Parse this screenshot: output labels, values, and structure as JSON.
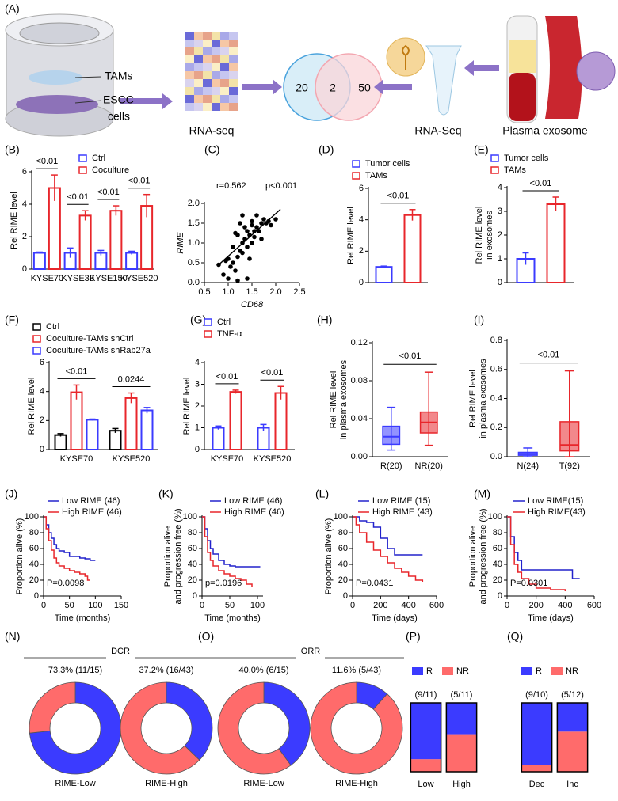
{
  "panel_a": {
    "label": "(A)",
    "tams": "TAMs",
    "escc": [
      "ESCC",
      "cells"
    ],
    "rna_seq_1": "RNA-seq",
    "venn": {
      "left": 20,
      "overlap": 2,
      "right": 50
    },
    "rna_seq_2": "RNA-Seq",
    "plasma": "Plasma exosome"
  },
  "chart_data": [
    {
      "panel": "(B)",
      "type": "bar",
      "ylabel": [
        "Rel RIME level"
      ],
      "categories": [
        "KYSE70",
        "KYSE30",
        "KYSE150",
        "KYSE520"
      ],
      "series": [
        {
          "name": "Ctrl",
          "color": "#3b3bff",
          "values": [
            1,
            1,
            1,
            1
          ],
          "errors": [
            0.05,
            0.3,
            0.15,
            0.1
          ]
        },
        {
          "name": "Coculture",
          "color": "#e8262b",
          "values": [
            5,
            3.3,
            3.6,
            3.9
          ],
          "errors": [
            0.8,
            0.3,
            0.3,
            0.7
          ]
        }
      ],
      "annotations": [
        "<0.01",
        "<0.01",
        "<0.01",
        "<0.01"
      ],
      "ylim": [
        0,
        6
      ],
      "yticks": [
        0,
        2,
        4,
        6
      ]
    },
    {
      "panel": "(C)",
      "type": "scatter",
      "stats": [
        "r=0.562",
        "p<0.001"
      ],
      "xlabel": "CD68",
      "ylabel": [
        "RIME"
      ],
      "x": [
        0.8,
        0.9,
        0.95,
        1.0,
        1.05,
        1.1,
        1.1,
        1.15,
        1.2,
        1.2,
        1.25,
        1.25,
        1.3,
        1.3,
        1.35,
        1.35,
        1.4,
        1.4,
        1.45,
        1.45,
        1.5,
        1.5,
        1.55,
        1.55,
        1.6,
        1.6,
        1.65,
        1.7,
        1.7,
        1.75,
        1.8,
        1.85,
        1.9,
        2.0,
        1.0,
        1.2,
        1.4,
        1.3,
        1.15,
        1.5
      ],
      "values": [
        0.45,
        0.2,
        0.55,
        0.6,
        0.4,
        0.5,
        0.9,
        0.3,
        0.65,
        1.2,
        0.8,
        1.5,
        1.0,
        0.75,
        1.1,
        1.4,
        0.9,
        1.3,
        1.2,
        0.6,
        1.0,
        1.55,
        1.3,
        1.15,
        1.4,
        1.7,
        1.3,
        1.5,
        1.1,
        1.6,
        1.5,
        1.55,
        1.45,
        1.6,
        0.1,
        0.05,
        0.1,
        1.7,
        1.25,
        1.45
      ],
      "trendline": {
        "x": [
          0.8,
          2.1
        ],
        "values": [
          0.45,
          1.85
        ]
      },
      "xlim": [
        0.5,
        2.5
      ],
      "xticks": [
        0.5,
        {
          "value": 1,
          "label": "1.0"
        },
        1.5,
        {
          "value": 2,
          "label": "2.0"
        },
        2.5
      ],
      "ylim": [
        0,
        2
      ],
      "yticks": [
        {
          "value": 0,
          "label": "0.0"
        },
        0.5,
        {
          "value": 1,
          "label": "1.0"
        },
        1.5,
        {
          "value": 2,
          "label": "2.0"
        }
      ]
    },
    {
      "panel": "(D)",
      "type": "bar",
      "ylabel": [
        "Rel RIME level"
      ],
      "categories": [
        null
      ],
      "series": [
        {
          "name": "Tumor cells",
          "color": "#3b3bff",
          "values": [
            1
          ],
          "errors": [
            0.05
          ]
        },
        {
          "name": "TAMs",
          "color": "#e8262b",
          "values": [
            4.3
          ],
          "errors": [
            0.35
          ]
        }
      ],
      "annotations": [
        "<0.01"
      ],
      "ylim": [
        0,
        6
      ],
      "yticks": [
        0,
        2,
        4,
        6
      ]
    },
    {
      "panel": "(E)",
      "type": "bar",
      "ylabel": [
        "Rel RIME level",
        "in exosomes"
      ],
      "categories": [
        null
      ],
      "series": [
        {
          "name": "Tumor cells",
          "color": "#3b3bff",
          "values": [
            1
          ],
          "errors": [
            0.25
          ]
        },
        {
          "name": "TAMs",
          "color": "#e8262b",
          "values": [
            3.3
          ],
          "errors": [
            0.3
          ]
        }
      ],
      "annotations": [
        "<0.01"
      ],
      "ylim": [
        0,
        4
      ],
      "yticks": [
        0,
        1,
        2,
        3,
        4
      ]
    },
    {
      "panel": "(F)",
      "type": "bar",
      "ylabel": [
        "Rel RIME level"
      ],
      "categories": [
        "KYSE70",
        "KYSE520"
      ],
      "series": [
        {
          "name": "Ctrl",
          "color": "#000000",
          "values": [
            1,
            1.3
          ],
          "errors": [
            0.1,
            0.15
          ]
        },
        {
          "name": "Coculture-TAMs shCtrl",
          "color": "#e8262b",
          "values": [
            3.95,
            3.55
          ],
          "errors": [
            0.5,
            0.35
          ]
        },
        {
          "name": "Coculture-TAMs shRab27a",
          "color": "#3b3bff",
          "values": [
            2.05,
            2.7
          ],
          "errors": [
            0.05,
            0.2
          ]
        }
      ],
      "annotations": [
        "<0.01",
        "0.0244"
      ],
      "ylim": [
        0,
        6
      ],
      "yticks": [
        0,
        2,
        4,
        6
      ]
    },
    {
      "panel": "(G)",
      "type": "bar",
      "ylabel": [
        "Rel RIME level"
      ],
      "categories": [
        "KYSE70",
        "KYSE520"
      ],
      "series": [
        {
          "name": "Ctrl",
          "color": "#3b3bff",
          "values": [
            1,
            1
          ],
          "errors": [
            0.08,
            0.15
          ]
        },
        {
          "name": "TNF-α",
          "color": "#e8262b",
          "values": [
            2.65,
            2.6
          ],
          "errors": [
            0.08,
            0.3
          ]
        }
      ],
      "annotations": [
        "<0.01",
        "<0.01"
      ],
      "ylim": [
        0,
        4
      ],
      "yticks": [
        0,
        1,
        2,
        3,
        4
      ]
    },
    {
      "panel": "(H)",
      "type": "box",
      "ylabel": [
        "Rel RIME level",
        "in plasma exosomes"
      ],
      "categories": [
        "R(20)",
        "NR(20)"
      ],
      "colors": [
        "#3b3bff",
        "#e8262b"
      ],
      "boxes": [
        {
          "min": 0.007,
          "q1": 0.013,
          "median": 0.021,
          "q3": 0.032,
          "max": 0.052
        },
        {
          "min": 0.012,
          "q1": 0.025,
          "median": 0.036,
          "q3": 0.047,
          "max": 0.089
        }
      ],
      "annotation": "<0.01",
      "ylim": [
        0,
        0.12
      ],
      "yticks": [
        {
          "value": 0,
          "label": "0.00"
        },
        {
          "value": 0.04,
          "label": "0.04"
        },
        {
          "value": 0.08,
          "label": "0.08"
        },
        {
          "value": 0.12,
          "label": "0.12"
        }
      ]
    },
    {
      "panel": "(I)",
      "type": "box",
      "ylabel": [
        "Rel RIME level",
        "in plasma exosomes"
      ],
      "categories": [
        "N(24)",
        "T(92)"
      ],
      "colors": [
        "#3b3bff",
        "#e8262b"
      ],
      "boxes": [
        {
          "min": 0.0,
          "q1": 0.01,
          "median": 0.02,
          "q3": 0.03,
          "max": 0.06
        },
        {
          "min": 0.0,
          "q1": 0.04,
          "median": 0.08,
          "q3": 0.24,
          "max": 0.59
        }
      ],
      "annotation": "<0.01",
      "ylim": [
        0,
        0.8
      ],
      "yticks": [
        {
          "value": 0,
          "label": "0.0"
        },
        0.2,
        0.4,
        0.6,
        0.8
      ]
    },
    {
      "panel": "(J)",
      "type": "km",
      "ylabel": [
        "Proportion alive (%)"
      ],
      "xlabel": "Time (months)",
      "pvalue": "P=0.0098",
      "series": [
        {
          "name": "Low RIME (46)",
          "color": "#2222cc",
          "x": [
            0,
            5,
            10,
            15,
            20,
            25,
            30,
            40,
            50,
            60,
            70,
            80,
            90,
            100
          ],
          "values": [
            100,
            90,
            80,
            73,
            65,
            60,
            57,
            55,
            50,
            50,
            48,
            47,
            45,
            45
          ]
        },
        {
          "name": "High RIME (46)",
          "color": "#e8262b",
          "x": [
            0,
            5,
            10,
            15,
            20,
            25,
            30,
            40,
            50,
            60,
            70,
            80,
            85,
            90
          ],
          "values": [
            100,
            85,
            70,
            58,
            48,
            42,
            38,
            35,
            32,
            30,
            28,
            25,
            20,
            20
          ]
        }
      ],
      "xlim": [
        0,
        150
      ],
      "xticks": [
        0,
        50,
        100,
        150
      ],
      "ylim": [
        0,
        100
      ],
      "yticks": [
        0,
        20,
        40,
        60,
        80,
        100
      ]
    },
    {
      "panel": "(K)",
      "type": "km",
      "ylabel": [
        "Proportion alive",
        "and progression free (%)"
      ],
      "xlabel": "Time (months)",
      "pvalue": "p=0.0196",
      "series": [
        {
          "name": "Low RIME (46)",
          "color": "#2222cc",
          "x": [
            0,
            5,
            10,
            15,
            20,
            30,
            40,
            50,
            60,
            70,
            80,
            90,
            100,
            105
          ],
          "values": [
            100,
            85,
            70,
            60,
            53,
            45,
            40,
            38,
            37,
            37,
            37,
            37,
            37,
            37
          ]
        },
        {
          "name": "High RIME (46)",
          "color": "#e8262b",
          "x": [
            0,
            5,
            10,
            15,
            20,
            30,
            40,
            50,
            60,
            70,
            80,
            90
          ],
          "values": [
            100,
            75,
            55,
            45,
            38,
            32,
            28,
            25,
            22,
            20,
            15,
            12
          ]
        }
      ],
      "xlim": [
        0,
        110
      ],
      "xticks": [
        0,
        50,
        100
      ],
      "ylim": [
        0,
        100
      ],
      "yticks": [
        0,
        20,
        40,
        60,
        80,
        100
      ]
    },
    {
      "panel": "(L)",
      "type": "km",
      "ylabel": [
        "Proportion alive (%)"
      ],
      "xlabel": "Time (days)",
      "pvalue": "P=0.0431",
      "series": [
        {
          "name": "Low RIME (15)",
          "color": "#2222cc",
          "x": [
            0,
            50,
            100,
            150,
            200,
            250,
            300,
            350,
            400,
            450,
            500
          ],
          "values": [
            100,
            95,
            93,
            87,
            73,
            60,
            52,
            52,
            52,
            52,
            52
          ]
        },
        {
          "name": "High RIME (43)",
          "color": "#e8262b",
          "x": [
            0,
            25,
            50,
            100,
            150,
            200,
            250,
            300,
            350,
            400,
            450,
            500
          ],
          "values": [
            100,
            90,
            80,
            68,
            58,
            50,
            42,
            35,
            30,
            25,
            20,
            18
          ]
        }
      ],
      "xlim": [
        0,
        600
      ],
      "xticks": [
        0,
        200,
        400,
        600
      ],
      "ylim": [
        0,
        100
      ],
      "yticks": [
        0,
        20,
        40,
        60,
        80,
        100
      ]
    },
    {
      "panel": "(M)",
      "type": "km",
      "ylabel": [
        "Proportion alive",
        "and progression free (%)"
      ],
      "xlabel": "Time (days)",
      "pvalue": "P=0.0301",
      "series": [
        {
          "name": "Low RIME(15)",
          "color": "#2222cc",
          "x": [
            0,
            25,
            50,
            75,
            100,
            200,
            300,
            400,
            450,
            500
          ],
          "values": [
            100,
            75,
            55,
            45,
            33,
            33,
            33,
            33,
            22,
            22
          ]
        },
        {
          "name": "High RIME(43)",
          "color": "#e8262b",
          "x": [
            0,
            25,
            50,
            75,
            100,
            150,
            200,
            300,
            400
          ],
          "values": [
            100,
            65,
            40,
            30,
            22,
            15,
            10,
            8,
            6
          ]
        }
      ],
      "xlim": [
        0,
        600
      ],
      "xticks": [
        0,
        200,
        400,
        600
      ],
      "ylim": [
        0,
        100
      ],
      "yticks": [
        0,
        20,
        40,
        60,
        80,
        100
      ]
    },
    {
      "panel": "(N)",
      "type": "donut",
      "title": "DCR",
      "colors": [
        "#3b3bff",
        "#ff6b6b"
      ],
      "groups": [
        {
          "name": "RIME-Low",
          "label": "73.3% (11/15)",
          "values": [
            73.3,
            26.7
          ]
        },
        {
          "name": "RIME-High",
          "label": "37.2% (16/43)",
          "values": [
            37.2,
            62.8
          ]
        }
      ]
    },
    {
      "panel": "(O)",
      "type": "donut",
      "title": "ORR",
      "colors": [
        "#3b3bff",
        "#ff6b6b"
      ],
      "groups": [
        {
          "name": "RIME-Low",
          "label": "40.0% (6/15)",
          "values": [
            40.0,
            60.0
          ]
        },
        {
          "name": "RIME-High",
          "label": "11.6% (5/43)",
          "values": [
            11.6,
            88.4
          ]
        }
      ]
    },
    {
      "panel": "(P)",
      "type": "stacked_bar",
      "categories": [
        "Low",
        "High"
      ],
      "counts": [
        "(9/11)",
        "(5/11)"
      ],
      "series": [
        {
          "name": "R",
          "color": "#3b3bff",
          "values": [
            81.8,
            45.5
          ]
        },
        {
          "name": "NR",
          "color": "#ff6b6b",
          "values": [
            18.2,
            54.5
          ]
        }
      ],
      "ylim": [
        0,
        100
      ]
    },
    {
      "panel": "(Q)",
      "type": "stacked_bar",
      "categories": [
        "Dec",
        "Inc"
      ],
      "counts": [
        "(9/10)",
        "(5/12)"
      ],
      "series": [
        {
          "name": "R",
          "color": "#3b3bff",
          "values": [
            90,
            41.7
          ]
        },
        {
          "name": "NR",
          "color": "#ff6b6b",
          "values": [
            10,
            58.3
          ]
        }
      ],
      "ylim": [
        0,
        100
      ]
    }
  ]
}
